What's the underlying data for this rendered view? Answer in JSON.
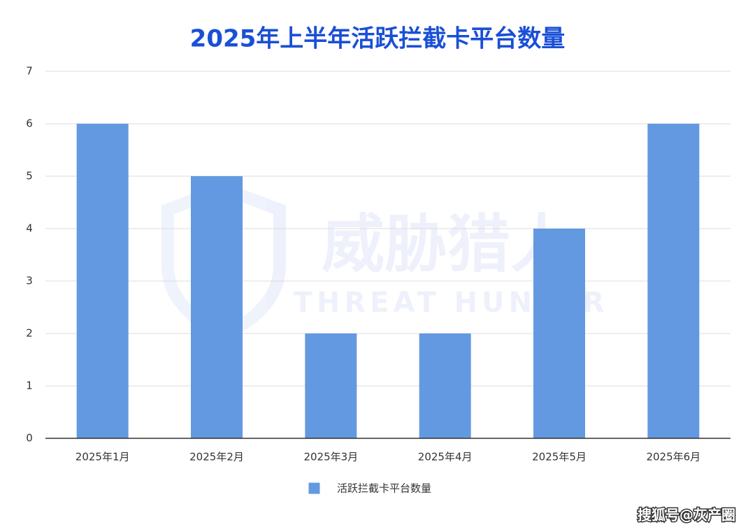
{
  "chart_data": {
    "type": "bar",
    "title": "2025年上半年活跃拦截卡平台数量",
    "categories": [
      "2025年1月",
      "2025年2月",
      "2025年3月",
      "2025年4月",
      "2025年5月",
      "2025年6月"
    ],
    "series": [
      {
        "name": "活跃拦截卡平台数量",
        "color": "#6399e0",
        "values": [
          6,
          5,
          2,
          2,
          4,
          6
        ]
      }
    ],
    "ylim": [
      0,
      7
    ],
    "yticks": [
      0,
      1,
      2,
      3,
      4,
      5,
      6,
      7
    ],
    "grid": true,
    "legend": "bottom",
    "watermark": [
      "威胁猎人",
      "THREAT HUNTER"
    ],
    "source": "搜狐号@灰产圈"
  }
}
